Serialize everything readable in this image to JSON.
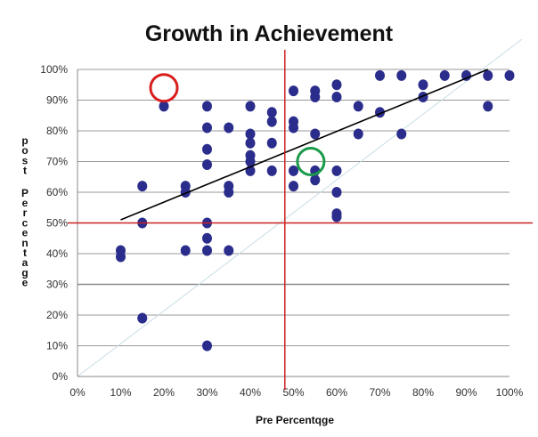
{
  "chart_data": {
    "type": "scatter",
    "title": "Growth in Achievement",
    "xlabel": "Pre Percentqge",
    "ylabel": "post Percentage",
    "xlim": [
      0,
      100
    ],
    "ylim": [
      0,
      100
    ],
    "x_ticks": [
      "0%",
      "10%",
      "20%",
      "30%",
      "40%",
      "50%",
      "60%",
      "70%",
      "80%",
      "90%",
      "100%"
    ],
    "y_ticks": [
      "0%",
      "10%",
      "20%",
      "30%",
      "40%",
      "50%",
      "60%",
      "70%",
      "80%",
      "90%",
      "100%"
    ],
    "grid": "horizontal",
    "series": [
      {
        "name": "students",
        "color": "#2b2d8c",
        "points": [
          [
            10,
            41
          ],
          [
            10,
            39
          ],
          [
            15,
            62
          ],
          [
            15,
            50
          ],
          [
            15,
            19
          ],
          [
            20,
            88
          ],
          [
            25,
            62
          ],
          [
            25,
            60
          ],
          [
            25,
            41
          ],
          [
            30,
            88
          ],
          [
            30,
            81
          ],
          [
            30,
            74
          ],
          [
            30,
            69
          ],
          [
            30,
            50
          ],
          [
            30,
            45
          ],
          [
            30,
            41
          ],
          [
            30,
            10
          ],
          [
            35,
            81
          ],
          [
            35,
            62
          ],
          [
            35,
            60
          ],
          [
            35,
            41
          ],
          [
            40,
            88
          ],
          [
            40,
            79
          ],
          [
            40,
            76
          ],
          [
            40,
            72
          ],
          [
            40,
            70
          ],
          [
            40,
            67
          ],
          [
            45,
            86
          ],
          [
            45,
            83
          ],
          [
            45,
            76
          ],
          [
            45,
            67
          ],
          [
            50,
            93
          ],
          [
            50,
            83
          ],
          [
            50,
            81
          ],
          [
            50,
            67
          ],
          [
            50,
            62
          ],
          [
            55,
            93
          ],
          [
            55,
            91
          ],
          [
            55,
            79
          ],
          [
            55,
            67
          ],
          [
            55,
            64
          ],
          [
            60,
            95
          ],
          [
            60,
            91
          ],
          [
            60,
            67
          ],
          [
            60,
            60
          ],
          [
            60,
            53
          ],
          [
            60,
            52
          ],
          [
            65,
            88
          ],
          [
            65,
            79
          ],
          [
            70,
            98
          ],
          [
            70,
            86
          ],
          [
            75,
            98
          ],
          [
            75,
            79
          ],
          [
            80,
            95
          ],
          [
            80,
            91
          ],
          [
            85,
            98
          ],
          [
            90,
            98
          ],
          [
            95,
            98
          ],
          [
            95,
            88
          ],
          [
            100,
            98
          ]
        ]
      }
    ],
    "trendline": {
      "x1": 10,
      "y1": 51,
      "x2": 95,
      "y2": 100,
      "color": "#000000"
    },
    "identity_line": {
      "color": "#c9dde6"
    },
    "reference_lines": [
      {
        "axis": "x",
        "value": 48,
        "color": "#cc2222"
      },
      {
        "axis": "y",
        "value": 50,
        "color": "#cc2222"
      }
    ],
    "annotations": [
      {
        "type": "circle",
        "x": 20,
        "y": 94,
        "color": "#d91e1e"
      },
      {
        "type": "circle",
        "x": 54,
        "y": 70,
        "color": "#1a9a4a"
      }
    ]
  }
}
